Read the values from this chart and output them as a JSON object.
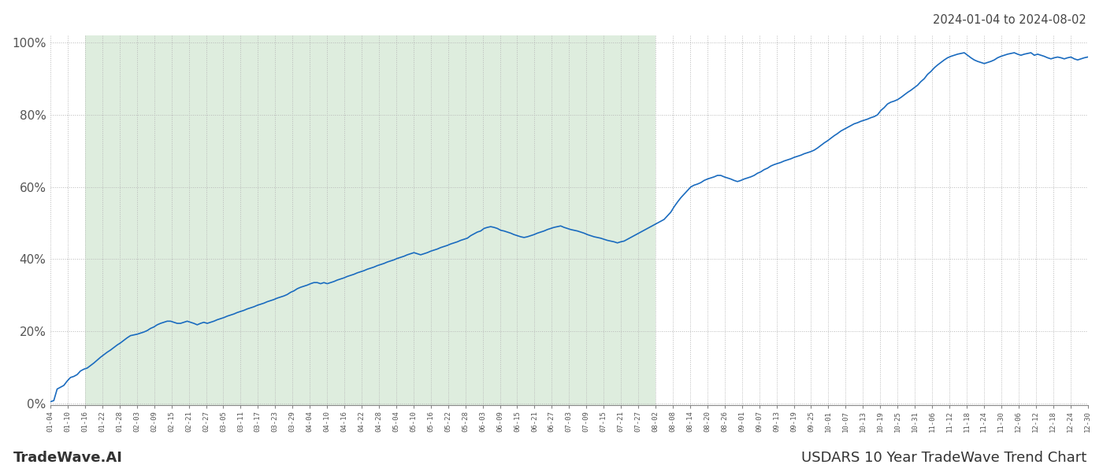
{
  "title_top_right": "2024-01-04 to 2024-08-02",
  "title_bottom_left": "TradeWave.AI",
  "title_bottom_right": "USDARS 10 Year TradeWave Trend Chart",
  "background_color": "#ffffff",
  "line_color": "#1a6bbf",
  "shade_color": "#d4e8d4",
  "shade_alpha": 0.75,
  "ylim": [
    -0.005,
    1.02
  ],
  "yticks": [
    0.0,
    0.2,
    0.4,
    0.6,
    0.8,
    1.0
  ],
  "ytick_labels": [
    "0%",
    "20%",
    "40%",
    "60%",
    "80%",
    "100%"
  ],
  "grid_color": "#b8b8b8",
  "grid_linestyle": ":",
  "shade_start_label": "01-16",
  "shade_end_label": "08-02",
  "x_labels": [
    "01-04",
    "01-10",
    "01-16",
    "01-22",
    "01-28",
    "02-03",
    "02-09",
    "02-15",
    "02-21",
    "02-27",
    "03-05",
    "03-11",
    "03-17",
    "03-23",
    "03-29",
    "04-04",
    "04-10",
    "04-16",
    "04-22",
    "04-28",
    "05-04",
    "05-10",
    "05-16",
    "05-22",
    "05-28",
    "06-03",
    "06-09",
    "06-15",
    "06-21",
    "06-27",
    "07-03",
    "07-09",
    "07-15",
    "07-21",
    "07-27",
    "08-02",
    "08-08",
    "08-14",
    "08-20",
    "08-26",
    "09-01",
    "09-07",
    "09-13",
    "09-19",
    "09-25",
    "10-01",
    "10-07",
    "10-13",
    "10-19",
    "10-25",
    "10-31",
    "11-06",
    "11-12",
    "11-18",
    "11-24",
    "11-30",
    "12-06",
    "12-12",
    "12-18",
    "12-24",
    "12-30"
  ],
  "y_values": [
    0.005,
    0.008,
    0.04,
    0.045,
    0.05,
    0.062,
    0.072,
    0.075,
    0.08,
    0.09,
    0.095,
    0.098,
    0.105,
    0.112,
    0.12,
    0.128,
    0.135,
    0.142,
    0.148,
    0.155,
    0.162,
    0.168,
    0.175,
    0.182,
    0.188,
    0.19,
    0.192,
    0.195,
    0.198,
    0.202,
    0.208,
    0.212,
    0.218,
    0.222,
    0.225,
    0.228,
    0.228,
    0.225,
    0.222,
    0.222,
    0.225,
    0.228,
    0.225,
    0.222,
    0.218,
    0.222,
    0.225,
    0.222,
    0.225,
    0.228,
    0.232,
    0.235,
    0.238,
    0.242,
    0.245,
    0.248,
    0.252,
    0.255,
    0.258,
    0.262,
    0.265,
    0.268,
    0.272,
    0.275,
    0.278,
    0.282,
    0.285,
    0.288,
    0.292,
    0.295,
    0.298,
    0.302,
    0.308,
    0.312,
    0.318,
    0.322,
    0.325,
    0.328,
    0.332,
    0.335,
    0.335,
    0.332,
    0.335,
    0.332,
    0.335,
    0.338,
    0.342,
    0.345,
    0.348,
    0.352,
    0.355,
    0.358,
    0.362,
    0.365,
    0.368,
    0.372,
    0.375,
    0.378,
    0.382,
    0.385,
    0.388,
    0.392,
    0.395,
    0.398,
    0.402,
    0.405,
    0.408,
    0.412,
    0.415,
    0.418,
    0.415,
    0.412,
    0.415,
    0.418,
    0.422,
    0.425,
    0.428,
    0.432,
    0.435,
    0.438,
    0.442,
    0.445,
    0.448,
    0.452,
    0.455,
    0.458,
    0.465,
    0.47,
    0.475,
    0.478,
    0.485,
    0.488,
    0.49,
    0.488,
    0.485,
    0.48,
    0.478,
    0.475,
    0.472,
    0.468,
    0.465,
    0.462,
    0.46,
    0.462,
    0.465,
    0.468,
    0.472,
    0.475,
    0.478,
    0.482,
    0.485,
    0.488,
    0.49,
    0.492,
    0.488,
    0.485,
    0.482,
    0.48,
    0.478,
    0.475,
    0.472,
    0.468,
    0.465,
    0.462,
    0.46,
    0.458,
    0.455,
    0.452,
    0.45,
    0.448,
    0.445,
    0.448,
    0.45,
    0.455,
    0.46,
    0.465,
    0.47,
    0.475,
    0.48,
    0.485,
    0.49,
    0.495,
    0.5,
    0.505,
    0.51,
    0.52,
    0.53,
    0.545,
    0.558,
    0.57,
    0.58,
    0.59,
    0.6,
    0.605,
    0.608,
    0.612,
    0.618,
    0.622,
    0.625,
    0.628,
    0.632,
    0.632,
    0.628,
    0.625,
    0.622,
    0.618,
    0.615,
    0.618,
    0.622,
    0.625,
    0.628,
    0.632,
    0.638,
    0.642,
    0.648,
    0.652,
    0.658,
    0.662,
    0.665,
    0.668,
    0.672,
    0.675,
    0.678,
    0.682,
    0.685,
    0.688,
    0.692,
    0.695,
    0.698,
    0.702,
    0.708,
    0.715,
    0.722,
    0.728,
    0.735,
    0.742,
    0.748,
    0.755,
    0.76,
    0.765,
    0.77,
    0.775,
    0.778,
    0.782,
    0.785,
    0.788,
    0.792,
    0.795,
    0.8,
    0.812,
    0.82,
    0.83,
    0.835,
    0.838,
    0.842,
    0.848,
    0.855,
    0.862,
    0.868,
    0.875,
    0.882,
    0.892,
    0.9,
    0.912,
    0.92,
    0.93,
    0.938,
    0.945,
    0.952,
    0.958,
    0.962,
    0.965,
    0.968,
    0.97,
    0.972,
    0.965,
    0.958,
    0.952,
    0.948,
    0.945,
    0.942,
    0.945,
    0.948,
    0.952,
    0.958,
    0.962,
    0.965,
    0.968,
    0.97,
    0.972,
    0.968,
    0.965,
    0.968,
    0.97,
    0.972,
    0.965,
    0.968,
    0.965,
    0.962,
    0.958,
    0.955,
    0.958,
    0.96,
    0.958,
    0.955,
    0.958,
    0.96,
    0.955,
    0.952,
    0.955,
    0.958,
    0.96
  ]
}
